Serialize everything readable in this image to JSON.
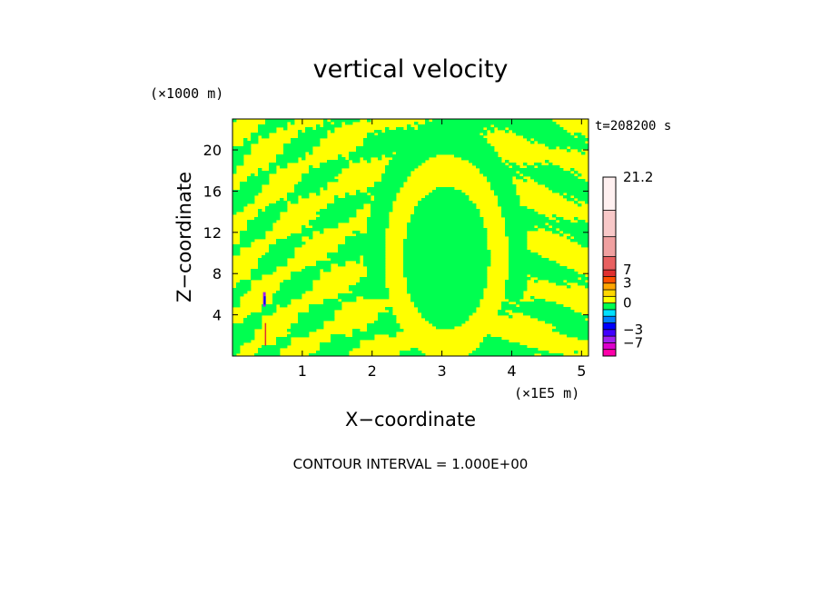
{
  "chart_data": {
    "type": "heatmap",
    "title": "vertical velocity",
    "xlabel": "X−coordinate",
    "ylabel": "Z−coordinate",
    "x_unit": "(×1E5 m)",
    "y_unit": "(×1000 m)",
    "time_label": "t=208200 s",
    "footer": "CONTOUR INTERVAL = 1.000E+00",
    "xlim": [
      0,
      5.1
    ],
    "ylim": [
      0,
      23
    ],
    "xticks": [
      {
        "value": 1,
        "label": "1"
      },
      {
        "value": 2,
        "label": "2"
      },
      {
        "value": 3,
        "label": "3"
      },
      {
        "value": 4,
        "label": "4"
      },
      {
        "value": 5,
        "label": "5"
      }
    ],
    "yticks": [
      {
        "value": 4,
        "label": "4"
      },
      {
        "value": 8,
        "label": "8"
      },
      {
        "value": 12,
        "label": "12"
      },
      {
        "value": 16,
        "label": "16"
      },
      {
        "value": 20,
        "label": "20"
      }
    ],
    "colorbar": {
      "labels": [
        "21.2",
        "7",
        "3",
        "0",
        "−3",
        "−7"
      ],
      "segments": [
        {
          "color": "#ff00aa",
          "weight": 1
        },
        {
          "color": "#dd00cc",
          "weight": 1
        },
        {
          "color": "#a020f0",
          "weight": 1
        },
        {
          "color": "#4000ff",
          "weight": 1
        },
        {
          "color": "#0000ff",
          "weight": 1
        },
        {
          "color": "#0080ff",
          "weight": 1
        },
        {
          "color": "#00e0ff",
          "weight": 1
        },
        {
          "color": "#00ff50",
          "weight": 1
        },
        {
          "color": "#ffff00",
          "weight": 1
        },
        {
          "color": "#ffd700",
          "weight": 1
        },
        {
          "color": "#ffa500",
          "weight": 1
        },
        {
          "color": "#ff5000",
          "weight": 1
        },
        {
          "color": "#e03030",
          "weight": 1
        },
        {
          "color": "#e86060",
          "weight": 2
        },
        {
          "color": "#f0a0a0",
          "weight": 3
        },
        {
          "color": "#f8c8c8",
          "weight": 4
        },
        {
          "color": "#fff0f0",
          "weight": 5
        }
      ]
    },
    "field_colors": {
      "positive": "#ffff00",
      "negative": "#00ff50",
      "trace_a": "#a020f0",
      "trace_b": "#0000ff",
      "trace_c": "#e03030"
    }
  }
}
